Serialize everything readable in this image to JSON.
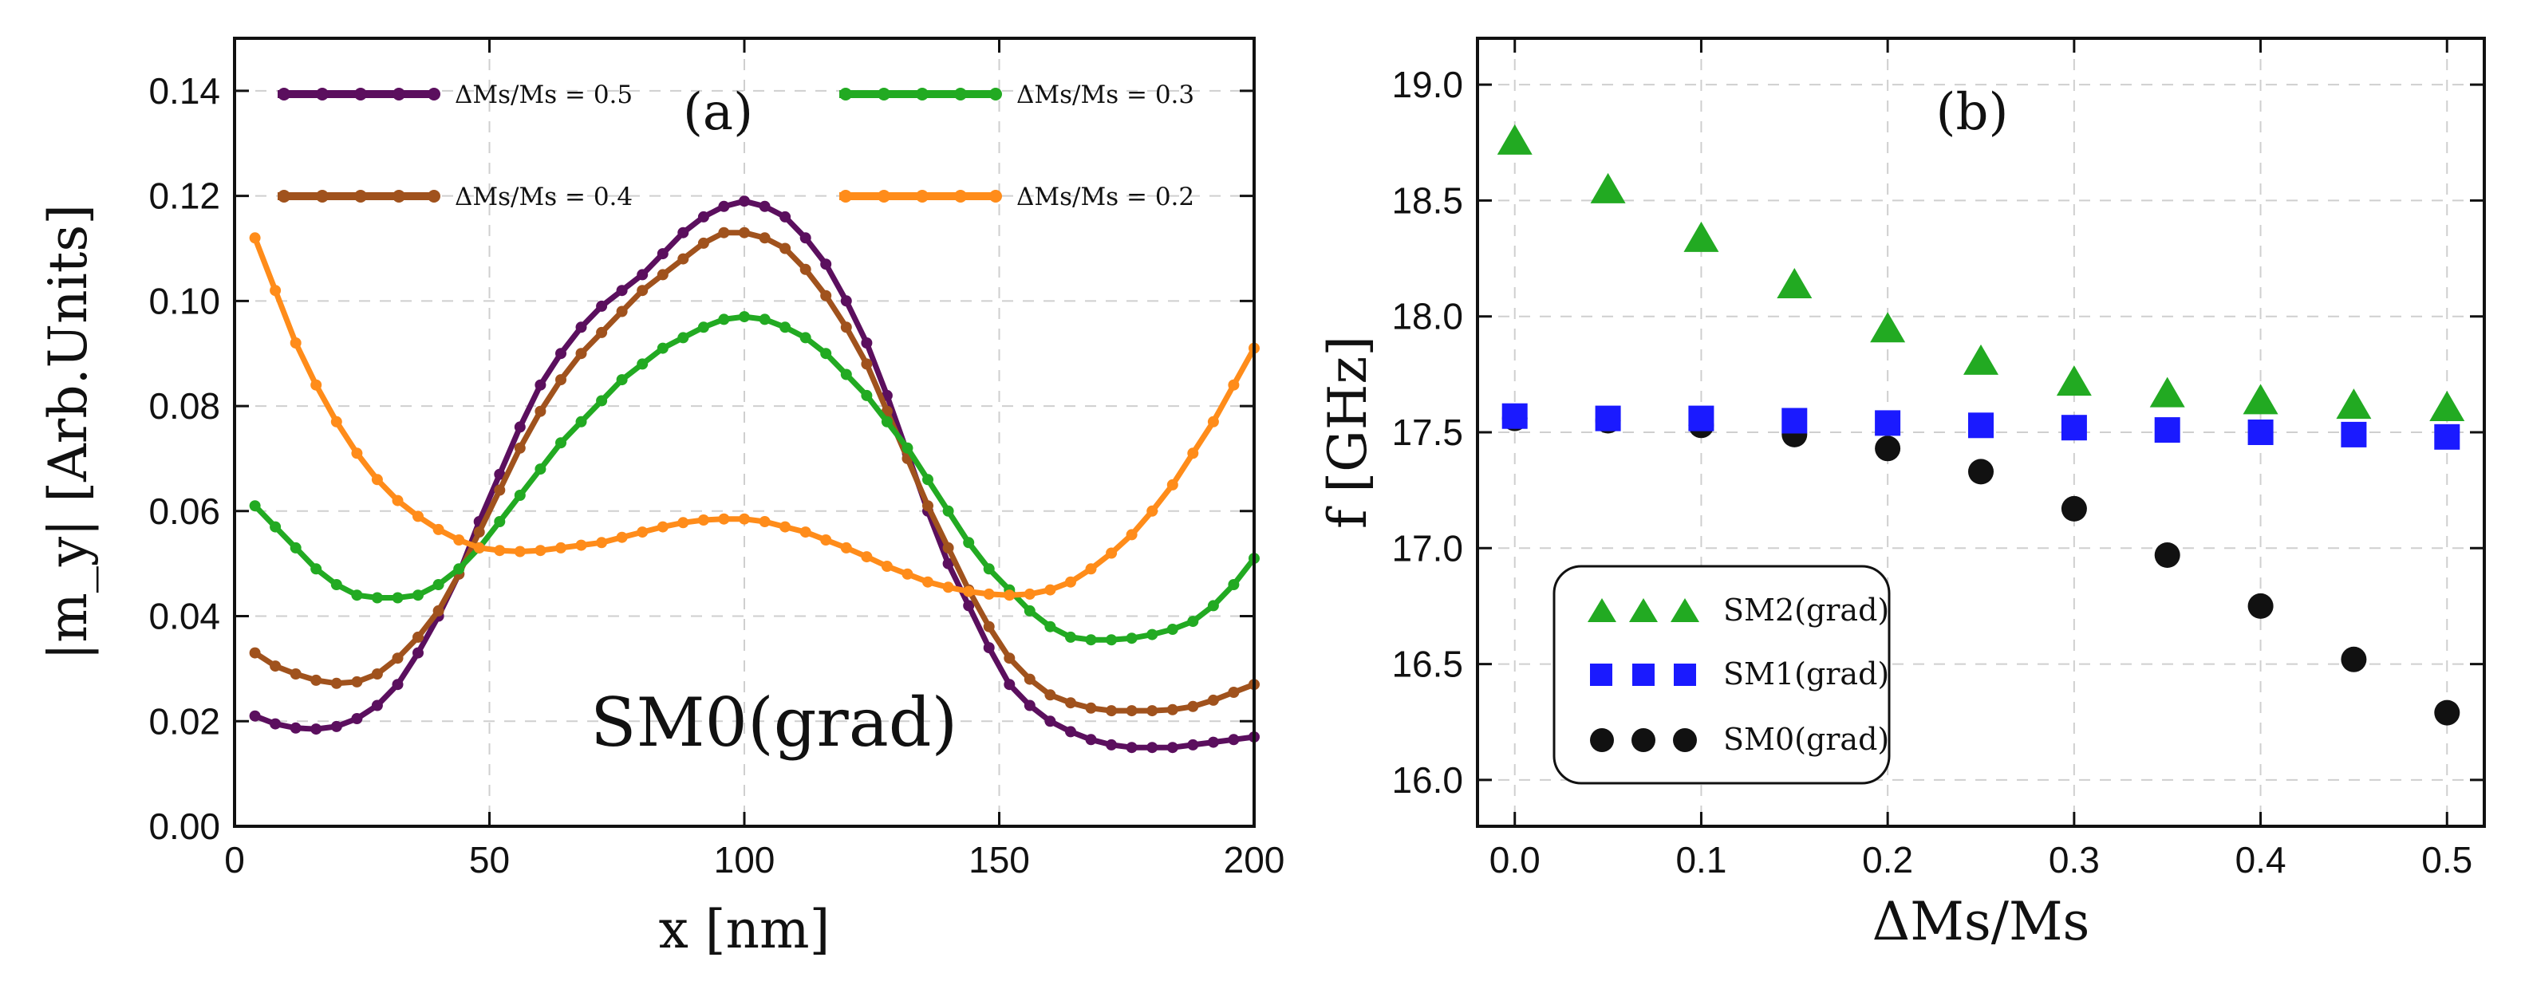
{
  "figure": {
    "background": "#ffffff"
  },
  "chart_data": [
    {
      "id": "a",
      "type": "line",
      "panel_label": "(a)",
      "xlabel": "x [nm]",
      "ylabel": "|m_y| [Arb.Units]",
      "xlim": [
        0,
        200
      ],
      "ylim": [
        0,
        0.15
      ],
      "x_ticks": [
        "0",
        "50",
        "100",
        "150",
        "200"
      ],
      "y_ticks": [
        "0.00",
        "0.02",
        "0.04",
        "0.06",
        "0.08",
        "0.10",
        "0.12",
        "0.14"
      ],
      "grid": true,
      "annotation": "SM0(grad)",
      "legend": {
        "position": "top",
        "columns": 2
      },
      "series": [
        {
          "name": "ΔMs/Ms = 0.5",
          "color": "#5b0f5e",
          "legend_order": 0,
          "x": [
            4,
            8,
            12,
            16,
            20,
            24,
            28,
            32,
            36,
            40,
            44,
            48,
            52,
            56,
            60,
            64,
            68,
            72,
            76,
            80,
            84,
            88,
            92,
            96,
            100,
            104,
            108,
            112,
            116,
            120,
            124,
            128,
            132,
            136,
            140,
            144,
            148,
            152,
            156,
            160,
            164,
            168,
            172,
            176,
            180,
            184,
            188,
            192,
            196,
            200
          ],
          "y": [
            0.021,
            0.0195,
            0.0187,
            0.0185,
            0.019,
            0.0205,
            0.023,
            0.027,
            0.033,
            0.04,
            0.048,
            0.058,
            0.067,
            0.076,
            0.084,
            0.09,
            0.095,
            0.099,
            0.102,
            0.105,
            0.109,
            0.113,
            0.116,
            0.118,
            0.119,
            0.118,
            0.116,
            0.112,
            0.107,
            0.1,
            0.092,
            0.082,
            0.071,
            0.06,
            0.05,
            0.042,
            0.034,
            0.027,
            0.023,
            0.02,
            0.018,
            0.0165,
            0.0155,
            0.015,
            0.015,
            0.015,
            0.0155,
            0.016,
            0.0165,
            0.017
          ]
        },
        {
          "name": "ΔMs/Ms = 0.4",
          "color": "#a0521d",
          "legend_order": 1,
          "x": [
            4,
            8,
            12,
            16,
            20,
            24,
            28,
            32,
            36,
            40,
            44,
            48,
            52,
            56,
            60,
            64,
            68,
            72,
            76,
            80,
            84,
            88,
            92,
            96,
            100,
            104,
            108,
            112,
            116,
            120,
            124,
            128,
            132,
            136,
            140,
            144,
            148,
            152,
            156,
            160,
            164,
            168,
            172,
            176,
            180,
            184,
            188,
            192,
            196,
            200
          ],
          "y": [
            0.033,
            0.0305,
            0.029,
            0.0278,
            0.0272,
            0.0275,
            0.029,
            0.032,
            0.036,
            0.041,
            0.048,
            0.056,
            0.064,
            0.072,
            0.079,
            0.085,
            0.09,
            0.094,
            0.098,
            0.102,
            0.105,
            0.108,
            0.111,
            0.113,
            0.113,
            0.112,
            0.11,
            0.106,
            0.101,
            0.095,
            0.088,
            0.079,
            0.07,
            0.061,
            0.053,
            0.045,
            0.038,
            0.032,
            0.028,
            0.025,
            0.0235,
            0.0225,
            0.022,
            0.022,
            0.022,
            0.0222,
            0.0228,
            0.024,
            0.0255,
            0.027
          ]
        },
        {
          "name": "ΔMs/Ms = 0.3",
          "color": "#22aa22",
          "legend_order": 2,
          "x": [
            4,
            8,
            12,
            16,
            20,
            24,
            28,
            32,
            36,
            40,
            44,
            48,
            52,
            56,
            60,
            64,
            68,
            72,
            76,
            80,
            84,
            88,
            92,
            96,
            100,
            104,
            108,
            112,
            116,
            120,
            124,
            128,
            132,
            136,
            140,
            144,
            148,
            152,
            156,
            160,
            164,
            168,
            172,
            176,
            180,
            184,
            188,
            192,
            196,
            200
          ],
          "y": [
            0.061,
            0.057,
            0.053,
            0.049,
            0.046,
            0.044,
            0.0435,
            0.0435,
            0.044,
            0.046,
            0.049,
            0.053,
            0.058,
            0.063,
            0.068,
            0.073,
            0.077,
            0.081,
            0.085,
            0.088,
            0.091,
            0.093,
            0.095,
            0.0965,
            0.097,
            0.0965,
            0.095,
            0.093,
            0.09,
            0.086,
            0.082,
            0.077,
            0.072,
            0.066,
            0.06,
            0.054,
            0.049,
            0.045,
            0.041,
            0.038,
            0.036,
            0.0355,
            0.0355,
            0.0358,
            0.0365,
            0.0375,
            0.039,
            0.042,
            0.046,
            0.051
          ]
        },
        {
          "name": "ΔMs/Ms = 0.2",
          "color": "#ff8c1a",
          "legend_order": 3,
          "x": [
            4,
            8,
            12,
            16,
            20,
            24,
            28,
            32,
            36,
            40,
            44,
            48,
            52,
            56,
            60,
            64,
            68,
            72,
            76,
            80,
            84,
            88,
            92,
            96,
            100,
            104,
            108,
            112,
            116,
            120,
            124,
            128,
            132,
            136,
            140,
            144,
            148,
            152,
            156,
            160,
            164,
            168,
            172,
            176,
            180,
            184,
            188,
            192,
            196,
            200
          ],
          "y": [
            0.112,
            0.102,
            0.092,
            0.084,
            0.077,
            0.071,
            0.066,
            0.062,
            0.059,
            0.0565,
            0.0545,
            0.053,
            0.0525,
            0.0523,
            0.0525,
            0.053,
            0.0535,
            0.054,
            0.055,
            0.056,
            0.057,
            0.0578,
            0.0583,
            0.0585,
            0.0585,
            0.058,
            0.057,
            0.056,
            0.0545,
            0.053,
            0.0513,
            0.0495,
            0.048,
            0.0465,
            0.0455,
            0.0447,
            0.0442,
            0.044,
            0.0442,
            0.045,
            0.0465,
            0.049,
            0.052,
            0.0555,
            0.06,
            0.065,
            0.071,
            0.077,
            0.084,
            0.091
          ]
        }
      ]
    },
    {
      "id": "b",
      "type": "scatter",
      "panel_label": "(b)",
      "xlabel": "ΔMs/Ms",
      "ylabel": "f [GHz]",
      "xlim": [
        -0.02,
        0.52
      ],
      "ylim": [
        15.8,
        19.2
      ],
      "x_ticks": [
        "0.0",
        "0.1",
        "0.2",
        "0.3",
        "0.4",
        "0.5"
      ],
      "y_ticks": [
        "16.0",
        "16.5",
        "17.0",
        "17.5",
        "18.0",
        "18.5",
        "19.0"
      ],
      "grid": true,
      "legend": {
        "position": "bottom-left"
      },
      "x": [
        0.0,
        0.05,
        0.1,
        0.15,
        0.2,
        0.25,
        0.3,
        0.35,
        0.4,
        0.45,
        0.5
      ],
      "series": [
        {
          "name": "SM2(grad)",
          "marker": "triangle",
          "color": "#22aa22",
          "values": [
            18.76,
            18.55,
            18.34,
            18.14,
            17.95,
            17.81,
            17.72,
            17.67,
            17.64,
            17.62,
            17.61
          ]
        },
        {
          "name": "SM1(grad)",
          "marker": "square",
          "color": "#1a1aff",
          "values": [
            17.57,
            17.56,
            17.56,
            17.55,
            17.54,
            17.53,
            17.52,
            17.51,
            17.5,
            17.49,
            17.48
          ]
        },
        {
          "name": "SM0(grad)",
          "marker": "circle",
          "color": "#111111",
          "values": [
            17.56,
            17.55,
            17.53,
            17.49,
            17.43,
            17.33,
            17.17,
            16.97,
            16.75,
            16.52,
            16.29
          ]
        }
      ]
    }
  ]
}
